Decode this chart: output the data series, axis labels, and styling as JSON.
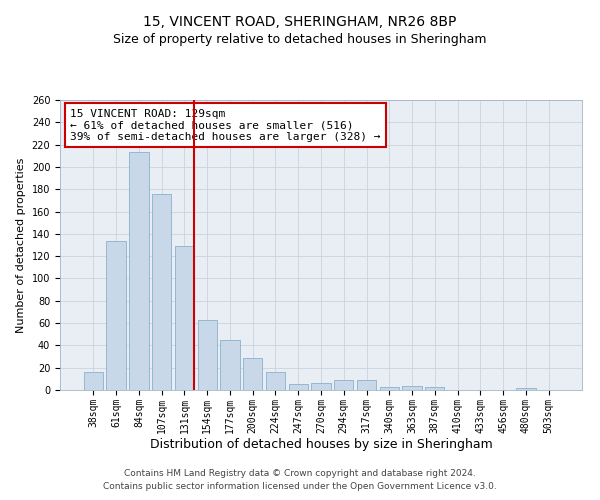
{
  "title1": "15, VINCENT ROAD, SHERINGHAM, NR26 8BP",
  "title2": "Size of property relative to detached houses in Sheringham",
  "xlabel": "Distribution of detached houses by size in Sheringham",
  "ylabel": "Number of detached properties",
  "categories": [
    "38sqm",
    "61sqm",
    "84sqm",
    "107sqm",
    "131sqm",
    "154sqm",
    "177sqm",
    "200sqm",
    "224sqm",
    "247sqm",
    "270sqm",
    "294sqm",
    "317sqm",
    "340sqm",
    "363sqm",
    "387sqm",
    "410sqm",
    "433sqm",
    "456sqm",
    "480sqm",
    "503sqm"
  ],
  "values": [
    16,
    134,
    213,
    176,
    129,
    63,
    45,
    29,
    16,
    5,
    6,
    9,
    9,
    3,
    4,
    3,
    0,
    0,
    0,
    2,
    0
  ],
  "bar_color": "#c8d8e8",
  "bar_edge_color": "#7aa8c8",
  "vline_x_index": 4,
  "vline_color": "#cc0000",
  "annotation_line1": "15 VINCENT ROAD: 129sqm",
  "annotation_line2": "← 61% of detached houses are smaller (516)",
  "annotation_line3": "39% of semi-detached houses are larger (328) →",
  "annotation_box_edge": "#cc0000",
  "ylim": [
    0,
    260
  ],
  "yticks": [
    0,
    20,
    40,
    60,
    80,
    100,
    120,
    140,
    160,
    180,
    200,
    220,
    240,
    260
  ],
  "grid_color": "#c8d4e0",
  "bg_color": "#e8eef4",
  "footer1": "Contains HM Land Registry data © Crown copyright and database right 2024.",
  "footer2": "Contains public sector information licensed under the Open Government Licence v3.0.",
  "title1_fontsize": 10,
  "title2_fontsize": 9,
  "xlabel_fontsize": 9,
  "ylabel_fontsize": 8,
  "tick_fontsize": 7,
  "annotation_fontsize": 8,
  "footer_fontsize": 6.5
}
